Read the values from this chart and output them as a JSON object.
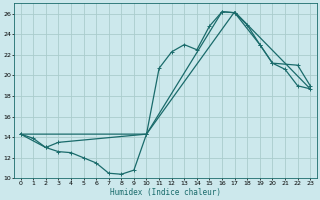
{
  "xlabel": "Humidex (Indice chaleur)",
  "bg_color": "#cce8ec",
  "grid_color": "#aacccc",
  "line_color": "#1a6b6b",
  "xlim": [
    -0.5,
    23.5
  ],
  "ylim": [
    10,
    27
  ],
  "xticks": [
    0,
    1,
    2,
    3,
    4,
    5,
    6,
    7,
    8,
    9,
    10,
    11,
    12,
    13,
    14,
    15,
    16,
    17,
    18,
    19,
    20,
    21,
    22,
    23
  ],
  "yticks": [
    10,
    12,
    14,
    16,
    18,
    20,
    22,
    24,
    26
  ],
  "curve1_x": [
    0,
    1,
    2,
    3,
    4,
    5,
    6,
    7,
    8,
    9,
    10,
    11,
    12,
    13,
    14,
    15,
    16,
    17,
    18,
    19,
    20,
    21,
    22,
    23
  ],
  "curve1_y": [
    14.3,
    13.9,
    13.0,
    12.6,
    12.5,
    12.0,
    11.5,
    10.5,
    10.4,
    10.8,
    14.3,
    20.7,
    22.3,
    23.0,
    22.5,
    24.8,
    26.2,
    26.1,
    24.9,
    23.0,
    21.2,
    20.6,
    19.0,
    18.7
  ],
  "curve2_x": [
    0,
    2,
    3,
    10,
    16,
    17,
    19,
    20,
    22,
    23
  ],
  "curve2_y": [
    14.3,
    13.0,
    13.5,
    14.3,
    26.2,
    26.1,
    23.0,
    21.2,
    21.0,
    19.0
  ],
  "curve3_x": [
    0,
    10,
    17,
    23
  ],
  "curve3_y": [
    14.3,
    14.3,
    26.2,
    18.7
  ]
}
